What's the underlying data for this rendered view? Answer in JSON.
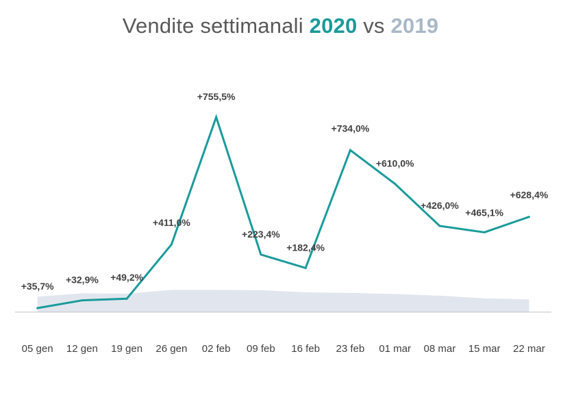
{
  "title": {
    "prefix": "Vendite settimanali",
    "year_2020": "2020",
    "connector": "vs",
    "year_2019": "2019"
  },
  "colors": {
    "series_2020": "#1a9a9a",
    "series_2019": "#e1e6ee",
    "axis": "#bfbfbf",
    "text": "#404040"
  },
  "chart_data": {
    "type": "line",
    "title": "Vendite settimanali 2020 vs 2019",
    "categories": [
      "05 gen",
      "12 gen",
      "19 gen",
      "26 gen",
      "02 feb",
      "09 feb",
      "16 feb",
      "23 feb",
      "01 mar",
      "08 mar",
      "15 mar",
      "22 mar"
    ],
    "series": [
      {
        "name": "2020",
        "type": "line",
        "values": [
          11,
          34,
          39,
          200,
          578,
          170,
          130,
          480,
          380,
          255,
          236,
          282
        ],
        "data_labels": [
          "+35,7%",
          "+32,9%",
          "+49,2%",
          "+411,0%",
          "+755,5%",
          "+223,4%",
          "+182,4%",
          "+734,0%",
          "+610,0%",
          "+426,0%",
          "+465,1%",
          "+628,4%"
        ]
      },
      {
        "name": "2019",
        "type": "area",
        "values": [
          45,
          55,
          54,
          65,
          65,
          64,
          58,
          56,
          53,
          48,
          40,
          37
        ]
      }
    ],
    "ylim": [
      -50,
      625
    ],
    "grid": false,
    "legend": "none"
  }
}
